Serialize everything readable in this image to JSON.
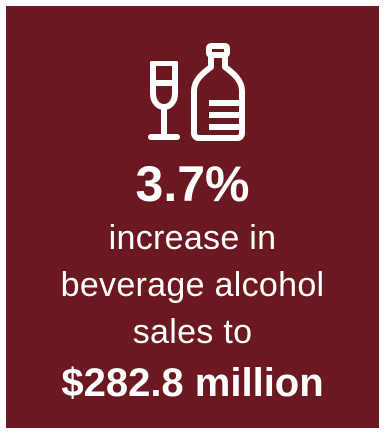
{
  "colors": {
    "background": "#6b1820",
    "text": "#ffffff"
  },
  "icons": [
    "wine-glass-icon",
    "liquor-bottle-icon"
  ],
  "stat": {
    "value": "3.7%",
    "description_lines": [
      "increase in",
      "beverage alcohol",
      "sales to"
    ],
    "amount": "$282.8 million"
  }
}
